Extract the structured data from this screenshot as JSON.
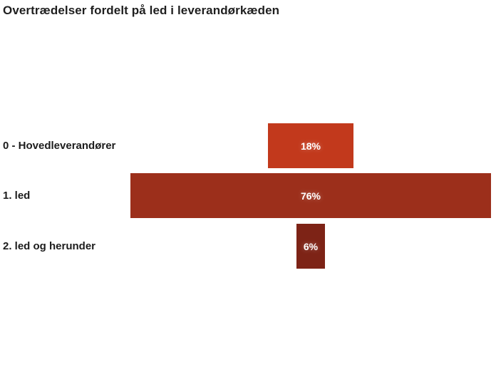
{
  "title": "Overtrædelser fordelt på led i leverandørkæden",
  "colors": {
    "background": "#ffffff",
    "title_text": "#1f1f1f",
    "category_text": "#1c1c1c",
    "value_text": "#ffffff"
  },
  "chart_data": {
    "type": "bar",
    "subtype": "funnel-centered-horizontal",
    "title": "Overtrædelser fordelt på led i leverandørkæden",
    "categories": [
      "0 - Hovedleverandører",
      "1. led",
      "2. led og herunder"
    ],
    "values": [
      18,
      76,
      6
    ],
    "value_labels": [
      "18%",
      "76%",
      "6%"
    ],
    "bar_colors": [
      "#c2391c",
      "#9c2f1b",
      "#7d2316"
    ],
    "max_value": 76,
    "xlabel": "",
    "ylabel": "",
    "grid": false,
    "legend": false,
    "value_label_position": "inside-center",
    "category_label_position": "left"
  }
}
